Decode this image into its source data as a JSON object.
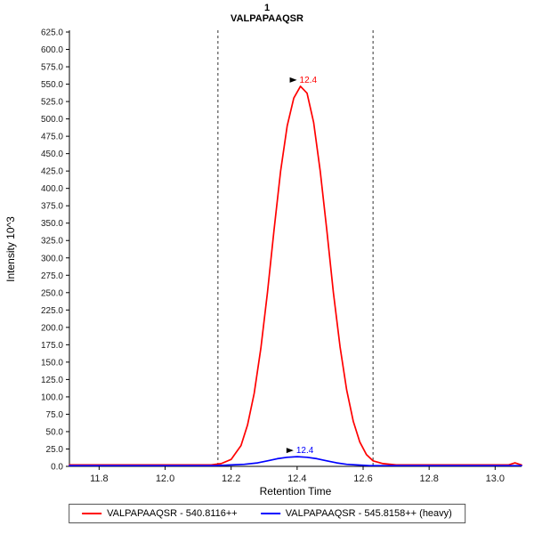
{
  "chart_data": {
    "type": "line",
    "title": "1",
    "subtitle": "VALPAPAAQSR",
    "xlabel": "Retention Time",
    "ylabel": "Intensity 10^3",
    "xlim": [
      11.71,
      13.08
    ],
    "ylim": [
      0,
      625
    ],
    "x_ticks": [
      "11.8",
      "12.0",
      "12.2",
      "12.4",
      "12.6",
      "12.8",
      "13.0"
    ],
    "y_ticks": [
      "0.0",
      "25.0",
      "50.0",
      "75.0",
      "100.0",
      "125.0",
      "150.0",
      "175.0",
      "200.0",
      "225.0",
      "250.0",
      "275.0",
      "300.0",
      "325.0",
      "350.0",
      "375.0",
      "400.0",
      "425.0",
      "450.0",
      "475.0",
      "500.0",
      "525.0",
      "550.0",
      "575.0",
      "600.0",
      "625.0"
    ],
    "peak_boundaries": [
      12.16,
      12.63
    ],
    "boundary_style": "dashed",
    "grid": false,
    "legend_position": "bottom",
    "series": [
      {
        "name": "VALPAPAAQSR - 540.8116++",
        "color": "#ff0000",
        "annotation": {
          "x": 12.41,
          "y": 547,
          "label": "12.4"
        },
        "points": [
          [
            11.71,
            2
          ],
          [
            11.8,
            2
          ],
          [
            11.9,
            2
          ],
          [
            12.0,
            2
          ],
          [
            12.05,
            2
          ],
          [
            12.1,
            2
          ],
          [
            12.14,
            2
          ],
          [
            12.17,
            4
          ],
          [
            12.2,
            10
          ],
          [
            12.23,
            30
          ],
          [
            12.25,
            60
          ],
          [
            12.27,
            105
          ],
          [
            12.29,
            170
          ],
          [
            12.31,
            250
          ],
          [
            12.33,
            340
          ],
          [
            12.35,
            425
          ],
          [
            12.37,
            490
          ],
          [
            12.39,
            530
          ],
          [
            12.41,
            547
          ],
          [
            12.43,
            537
          ],
          [
            12.45,
            495
          ],
          [
            12.47,
            425
          ],
          [
            12.49,
            340
          ],
          [
            12.51,
            250
          ],
          [
            12.53,
            172
          ],
          [
            12.55,
            110
          ],
          [
            12.57,
            65
          ],
          [
            12.59,
            35
          ],
          [
            12.61,
            17
          ],
          [
            12.63,
            8
          ],
          [
            12.66,
            4
          ],
          [
            12.7,
            2
          ],
          [
            12.8,
            2
          ],
          [
            12.9,
            2
          ],
          [
            13.0,
            2
          ],
          [
            13.04,
            2
          ],
          [
            13.06,
            5
          ],
          [
            13.08,
            2
          ]
        ]
      },
      {
        "name": "VALPAPAAQSR - 545.8158++ (heavy)",
        "color": "#0000ff",
        "annotation": {
          "x": 12.4,
          "y": 14,
          "label": "12.4"
        },
        "points": [
          [
            11.71,
            1
          ],
          [
            11.9,
            1
          ],
          [
            12.0,
            1
          ],
          [
            12.1,
            1
          ],
          [
            12.15,
            1
          ],
          [
            12.2,
            2
          ],
          [
            12.24,
            3
          ],
          [
            12.28,
            5
          ],
          [
            12.31,
            8
          ],
          [
            12.34,
            11
          ],
          [
            12.37,
            13
          ],
          [
            12.4,
            14
          ],
          [
            12.43,
            13
          ],
          [
            12.46,
            11
          ],
          [
            12.49,
            8
          ],
          [
            12.52,
            5
          ],
          [
            12.55,
            3
          ],
          [
            12.58,
            2
          ],
          [
            12.62,
            1
          ],
          [
            12.7,
            1
          ],
          [
            12.8,
            1
          ],
          [
            13.0,
            1
          ],
          [
            13.08,
            1
          ]
        ]
      }
    ]
  },
  "legend": {
    "items": [
      {
        "label": "VALPAPAAQSR - 540.8116++",
        "color": "#ff0000"
      },
      {
        "label": "VALPAPAAQSR - 545.8158++ (heavy)",
        "color": "#0000ff"
      }
    ]
  }
}
